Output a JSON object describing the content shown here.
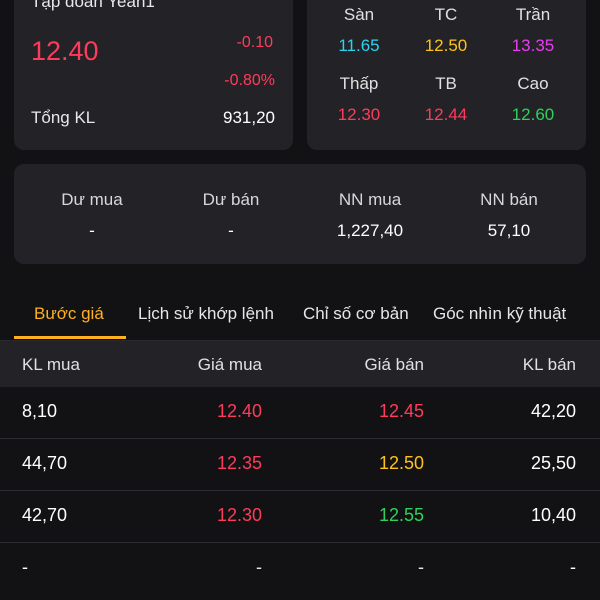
{
  "quote": {
    "company": "Tập đoàn Yeah1",
    "price": "12.40",
    "change": "-0.10",
    "change_pct": "-0.80%",
    "volume_label": "Tổng KL",
    "volume_value": "931,20"
  },
  "levels": [
    {
      "label": "Sàn",
      "value": "11.65",
      "color": "#2ad4f0"
    },
    {
      "label": "TC",
      "value": "12.50",
      "color": "#ffc21a"
    },
    {
      "label": "Trần",
      "value": "13.35",
      "color": "#e83cf0"
    },
    {
      "label": "Thấp",
      "value": "12.30",
      "color": "#ff3b5c"
    },
    {
      "label": "TB",
      "value": "12.44",
      "color": "#ff3b5c"
    },
    {
      "label": "Cao",
      "value": "12.60",
      "color": "#2fd15a"
    }
  ],
  "flow": [
    {
      "label": "Dư mua",
      "value": "-"
    },
    {
      "label": "Dư bán",
      "value": "-"
    },
    {
      "label": "NN mua",
      "value": "1,227,40"
    },
    {
      "label": "NN bán",
      "value": "57,10"
    }
  ],
  "tabs": [
    {
      "label": "Bước giá",
      "active": true
    },
    {
      "label": "Lịch sử khớp lệnh",
      "active": false
    },
    {
      "label": "Chỉ số cơ bản",
      "active": false
    },
    {
      "label": "Góc nhìn kỹ thuật",
      "active": false
    }
  ],
  "order_book": {
    "headers": [
      "KL mua",
      "Giá mua",
      "Giá bán",
      "KL bán"
    ],
    "rows": [
      {
        "bid_vol": "8,10",
        "bid": "12.40",
        "bid_color": "#ff3b5c",
        "ask": "12.45",
        "ask_color": "#ff3b5c",
        "ask_vol": "42,20"
      },
      {
        "bid_vol": "44,70",
        "bid": "12.35",
        "bid_color": "#ff3b5c",
        "ask": "12.50",
        "ask_color": "#ffc21a",
        "ask_vol": "25,50"
      },
      {
        "bid_vol": "42,70",
        "bid": "12.30",
        "bid_color": "#ff3b5c",
        "ask": "12.55",
        "ask_color": "#2fd15a",
        "ask_vol": "10,40"
      },
      {
        "bid_vol": "-",
        "bid": "-",
        "bid_color": "#e8e8e8",
        "ask": "-",
        "ask_color": "#e8e8e8",
        "ask_vol": "-"
      }
    ]
  }
}
